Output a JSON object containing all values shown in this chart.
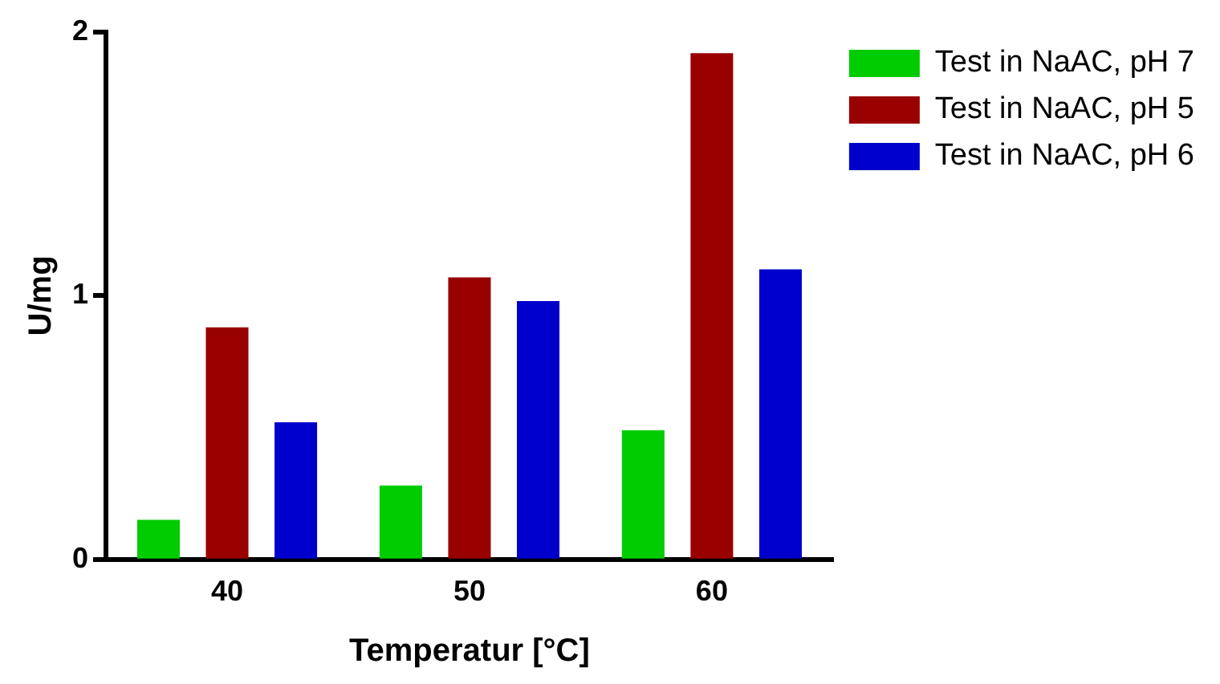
{
  "chart_data": {
    "type": "bar",
    "xlabel": "Temperatur [°C]",
    "ylabel": "U/mg",
    "categories": [
      "40",
      "50",
      "60"
    ],
    "series": [
      {
        "name": "Test in NaAC, pH 7",
        "color": "#00cc00",
        "values": [
          0.15,
          0.28,
          0.49
        ]
      },
      {
        "name": "Test in NaAC, pH 5",
        "color": "#990000",
        "values": [
          0.88,
          1.07,
          1.92
        ]
      },
      {
        "name": "Test in NaAC, pH 6",
        "color": "#0000cc",
        "values": [
          0.52,
          0.98,
          1.1
        ]
      }
    ],
    "ylim": [
      0,
      2
    ],
    "yticks": [
      0,
      1,
      2
    ],
    "grid": false,
    "legend": "top right"
  }
}
